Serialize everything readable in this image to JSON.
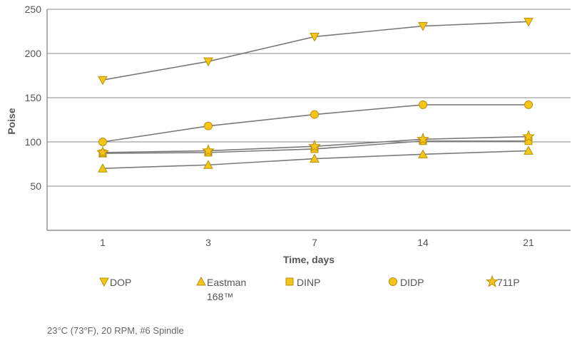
{
  "chart_data": {
    "type": "line",
    "categories": [
      "1",
      "3",
      "7",
      "14",
      "21"
    ],
    "xlabel": "Time, days",
    "ylabel": "Poise",
    "ylim": [
      0,
      250
    ],
    "yticks": [
      50,
      100,
      150,
      200,
      250
    ],
    "grid": "horizontal",
    "legend_position": "bottom",
    "series": [
      {
        "name": "DOP",
        "marker": "triangle-down",
        "values": [
          170,
          191,
          219,
          231,
          236
        ]
      },
      {
        "name": "Eastman 168™",
        "marker": "triangle-up",
        "values": [
          70,
          74,
          81,
          86,
          90
        ]
      },
      {
        "name": "DINP",
        "marker": "square",
        "values": [
          87,
          88,
          92,
          101,
          101
        ]
      },
      {
        "name": "DIDP",
        "marker": "circle",
        "values": [
          100,
          118,
          131,
          142,
          142
        ]
      },
      {
        "name": "711P",
        "marker": "star",
        "values": [
          88,
          90,
          95,
          103,
          106
        ]
      }
    ],
    "colors": {
      "line": "#7a7a7a",
      "marker_fill": "#f5c518",
      "marker_stroke": "#b8900a",
      "grid": "#8a8a8a",
      "text": "#555555"
    }
  },
  "legend": [
    {
      "line1": "DOP",
      "line2": ""
    },
    {
      "line1": "Eastman",
      "line2": "168™"
    },
    {
      "line1": "DINP",
      "line2": ""
    },
    {
      "line1": "DIDP",
      "line2": ""
    },
    {
      "line1": "711P",
      "line2": ""
    }
  ],
  "footnote": "23°C (73°F), 20 RPM, #6 Spindle"
}
